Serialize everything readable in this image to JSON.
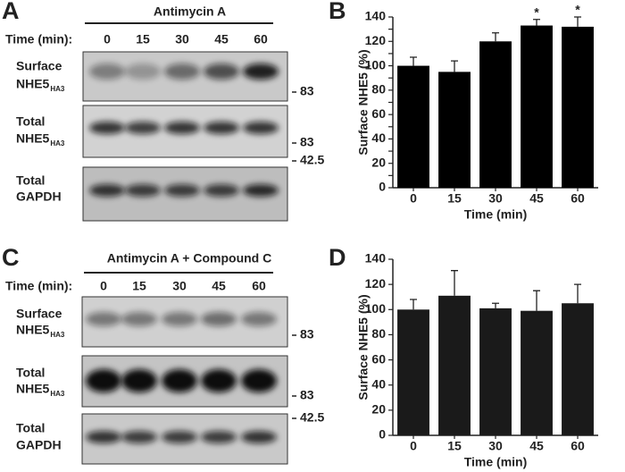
{
  "panels": [
    {
      "letter": "A",
      "treatment": "Antimycin A",
      "time_label": "Time (min):",
      "times": [
        "0",
        "15",
        "30",
        "45",
        "60"
      ],
      "blots": [
        {
          "label": [
            "Surface",
            "NHE5"
          ],
          "subscript": "HA3",
          "marker": "83"
        },
        {
          "label": [
            "Total",
            "NHE5"
          ],
          "subscript": "HA3",
          "marker": "83"
        },
        {
          "label": [
            "Total",
            "GAPDH"
          ],
          "marker": "42.5"
        }
      ]
    },
    {
      "letter": "C",
      "treatment": "Antimycin A + Compound C",
      "time_label": "Time (min):",
      "times": [
        "0",
        "15",
        "30",
        "45",
        "60"
      ],
      "blots": [
        {
          "label": [
            "Surface",
            "NHE5"
          ],
          "subscript": "HA3",
          "marker": "83"
        },
        {
          "label": [
            "Total",
            "NHE5"
          ],
          "subscript": "HA3",
          "marker": "83"
        },
        {
          "label": [
            "Total",
            "GAPDH"
          ],
          "marker": "42.5"
        }
      ]
    }
  ],
  "chart_data": [
    {
      "type": "bar",
      "panel_label": "B",
      "y_label": "Surface NHE5 (%)",
      "x_label": "Time (min)",
      "categories": [
        "0",
        "15",
        "30",
        "45",
        "60"
      ],
      "values": [
        100,
        95,
        120,
        133,
        132
      ],
      "errors": [
        7,
        9,
        7,
        5,
        8
      ],
      "significance": [
        null,
        null,
        null,
        "*",
        "*"
      ],
      "color": "#000000",
      "ylim": [
        0,
        140
      ],
      "yticks": [
        0,
        10,
        20,
        30,
        40,
        50,
        60,
        70,
        80,
        90,
        100,
        110,
        120,
        130,
        140
      ]
    },
    {
      "type": "bar",
      "panel_label": "D",
      "y_label": "Surface NHE5 (%)",
      "x_label": "Time (min)",
      "categories": [
        "0",
        "15",
        "30",
        "45",
        "60"
      ],
      "values": [
        100,
        111,
        101,
        99,
        105
      ],
      "errors": [
        8,
        20,
        4,
        16,
        15
      ],
      "color": "#1a1a1a",
      "ylim": [
        0,
        140
      ],
      "yticks": [
        0,
        20,
        40,
        60,
        80,
        100,
        120,
        140
      ]
    }
  ]
}
